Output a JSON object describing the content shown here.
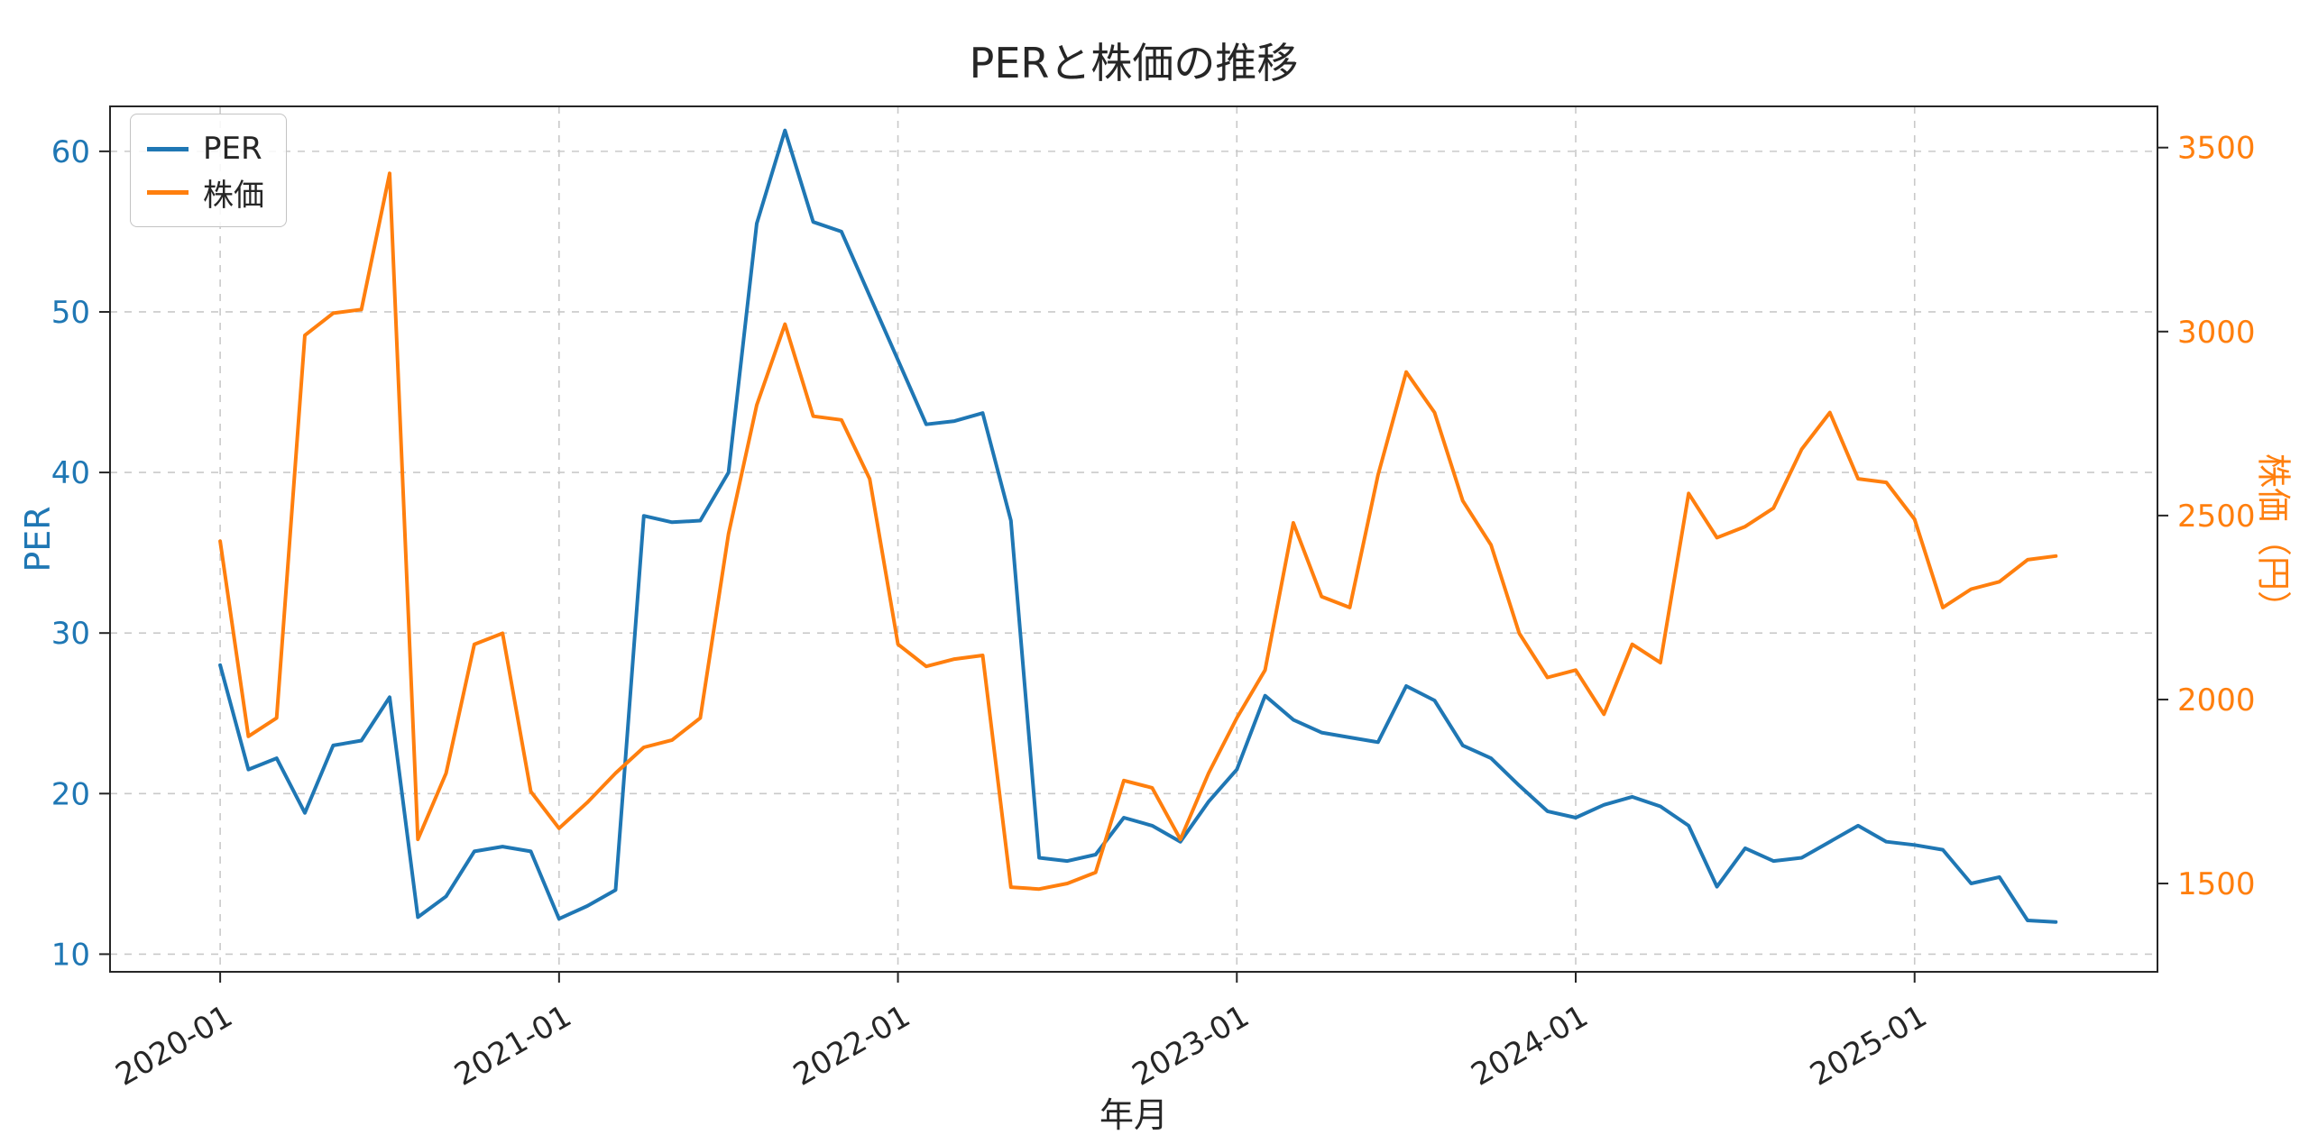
{
  "title": "PERと株価の推移",
  "colors": {
    "per_blue": "#1f77b4",
    "price_orange": "#ff7f0e",
    "grid": "#c9c9c9",
    "text": "#262626",
    "background": "#ffffff"
  },
  "chart_data": {
    "type": "line",
    "title": "PERと株価の推移",
    "xlabel": "年月",
    "grid": true,
    "legend_position": "upper left",
    "x_tick_labels": [
      "2020-01",
      "2021-01",
      "2022-01",
      "2023-01",
      "2024-01",
      "2025-01"
    ],
    "x_tick_indices": [
      0,
      12,
      24,
      36,
      48,
      60
    ],
    "xlim_index": [
      -3.9,
      68.6
    ],
    "x": [
      "2020-01",
      "2020-02",
      "2020-03",
      "2020-04",
      "2020-05",
      "2020-06",
      "2020-07",
      "2020-08",
      "2020-09",
      "2020-10",
      "2020-11",
      "2020-12",
      "2021-01",
      "2021-02",
      "2021-03",
      "2021-04",
      "2021-05",
      "2021-06",
      "2021-07",
      "2021-08",
      "2021-09",
      "2021-10",
      "2021-11",
      "2021-12",
      "2022-01",
      "2022-02",
      "2022-03",
      "2022-04",
      "2022-05",
      "2022-06",
      "2022-07",
      "2022-08",
      "2022-09",
      "2022-10",
      "2022-11",
      "2022-12",
      "2023-01",
      "2023-02",
      "2023-03",
      "2023-04",
      "2023-05",
      "2023-06",
      "2023-07",
      "2023-08",
      "2023-09",
      "2023-10",
      "2023-11",
      "2023-12",
      "2024-01",
      "2024-02",
      "2024-03",
      "2024-04",
      "2024-05",
      "2024-06",
      "2024-07",
      "2024-08",
      "2024-09",
      "2024-10",
      "2024-11",
      "2024-12",
      "2025-01",
      "2025-02",
      "2025-03",
      "2025-04",
      "2025-05",
      "2025-06"
    ],
    "axes": {
      "left": {
        "label": "PER",
        "color": "#1f77b4",
        "ticks": [
          10,
          20,
          30,
          40,
          50,
          60
        ],
        "range": [
          8.9,
          62.8
        ]
      },
      "right": {
        "label": "株価（円）",
        "color": "#ff7f0e",
        "ticks": [
          1500,
          2000,
          2500,
          3000,
          3500
        ],
        "range": [
          1260,
          3612
        ]
      }
    },
    "series": [
      {
        "name": "PER",
        "axis": "left",
        "color": "#1f77b4",
        "values": [
          28.0,
          21.5,
          22.2,
          18.8,
          23.0,
          23.3,
          26.0,
          12.3,
          13.6,
          16.4,
          16.7,
          16.4,
          12.2,
          13.0,
          14.0,
          37.3,
          36.9,
          37.0,
          40.0,
          55.5,
          61.3,
          55.6,
          55.0,
          51.0,
          47.0,
          43.0,
          43.2,
          43.7,
          37.0,
          16.0,
          15.8,
          16.2,
          18.5,
          18.0,
          17.0,
          19.5,
          21.5,
          26.1,
          24.6,
          23.8,
          23.5,
          23.2,
          26.7,
          25.8,
          23.0,
          22.2,
          20.5,
          18.9,
          18.5,
          19.3,
          19.8,
          19.2,
          18.0,
          14.2,
          16.6,
          15.8,
          16.0,
          17.0,
          18.0,
          17.0,
          16.8,
          16.5,
          14.4,
          14.8,
          12.1,
          12.0
        ]
      },
      {
        "name": "株価",
        "axis": "right",
        "color": "#ff7f0e",
        "values": [
          2430,
          1900,
          1950,
          2990,
          3050,
          3060,
          3430,
          1620,
          1800,
          2150,
          2180,
          1750,
          1650,
          1720,
          1800,
          1870,
          1890,
          1950,
          2450,
          2800,
          3020,
          2770,
          2760,
          2600,
          2150,
          2090,
          2110,
          2120,
          1490,
          1485,
          1500,
          1530,
          1780,
          1760,
          1620,
          1800,
          1950,
          2080,
          2480,
          2280,
          2250,
          2610,
          2890,
          2780,
          2540,
          2420,
          2180,
          2060,
          2080,
          1960,
          2150,
          2100,
          2560,
          2440,
          2470,
          2520,
          2680,
          2780,
          2600,
          2590,
          2490,
          2250,
          2300,
          2320,
          2380,
          2390
        ]
      }
    ]
  }
}
